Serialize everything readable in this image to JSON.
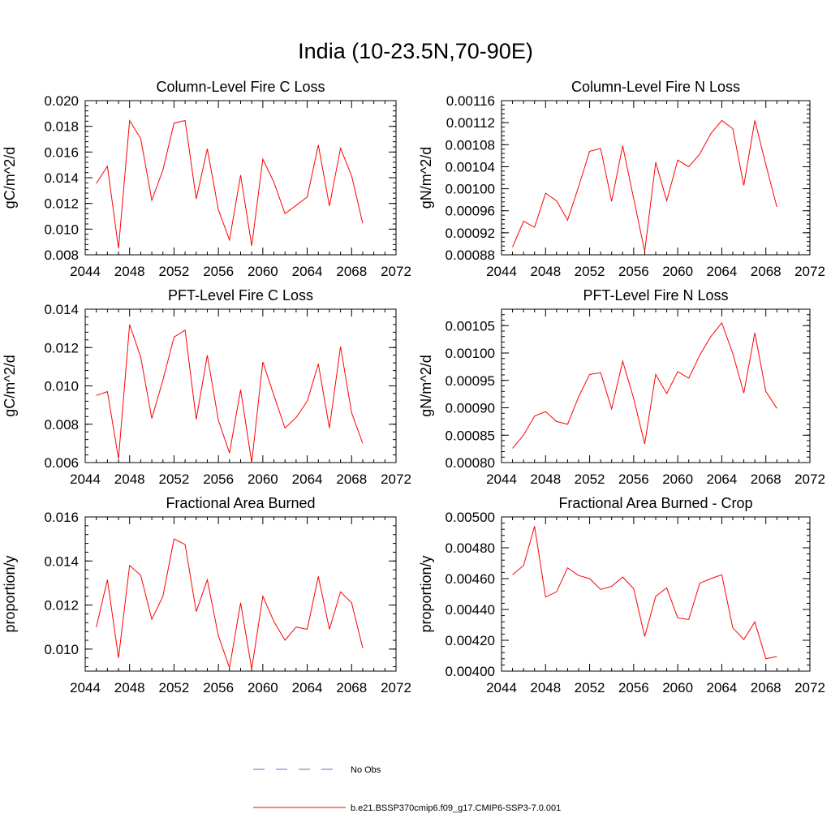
{
  "page": {
    "title": "India (10-23.5N,70-90E)"
  },
  "colors": {
    "series": "#ff0000",
    "obs": "#6b6bc8",
    "axis": "#000000"
  },
  "legend": {
    "entries": [
      {
        "label": "No Obs",
        "style": "dashed",
        "color": "#6b6bc8"
      },
      {
        "label": "b.e21.BSSP370cmip6.f09_g17.CMIP6-SSP3-7.0.001",
        "style": "solid",
        "color": "#ff0000"
      }
    ]
  },
  "chart_data": [
    {
      "type": "line",
      "title": "Column-Level Fire C Loss",
      "ylabel": "gC/m^2/d",
      "xlim": [
        2044,
        2072
      ],
      "xticks": [
        2044,
        2048,
        2052,
        2056,
        2060,
        2064,
        2068,
        2072
      ],
      "ylim": [
        0.008,
        0.02
      ],
      "yticks": [
        "0.008",
        "0.010",
        "0.012",
        "0.014",
        "0.016",
        "0.018",
        "0.020"
      ],
      "x": [
        2045,
        2046,
        2047,
        2048,
        2049,
        2050,
        2051,
        2052,
        2053,
        2054,
        2055,
        2056,
        2057,
        2058,
        2059,
        2060,
        2061,
        2062,
        2063,
        2064,
        2065,
        2066,
        2067,
        2068,
        2069
      ],
      "series": [
        {
          "name": "b.e21.BSSP370cmip6.f09_g17.CMIP6-SSP3-7.0.001",
          "values": [
            0.01355,
            0.0149,
            0.0085,
            0.01845,
            0.01705,
            0.01225,
            0.0146,
            0.01825,
            0.01845,
            0.01235,
            0.01625,
            0.0115,
            0.00915,
            0.0142,
            0.0087,
            0.01545,
            0.01365,
            0.0112,
            0.01185,
            0.0125,
            0.01655,
            0.0118,
            0.0163,
            0.01415,
            0.01045
          ]
        }
      ]
    },
    {
      "type": "line",
      "title": "Column-Level Fire N Loss",
      "ylabel": "gN/m^2/d",
      "xlim": [
        2044,
        2072
      ],
      "xticks": [
        2044,
        2048,
        2052,
        2056,
        2060,
        2064,
        2068,
        2072
      ],
      "ylim": [
        0.00088,
        0.00116
      ],
      "yticks": [
        "0.00088",
        "0.00092",
        "0.00096",
        "0.00100",
        "0.00104",
        "0.00108",
        "0.00112",
        "0.00116"
      ],
      "x": [
        2045,
        2046,
        2047,
        2048,
        2049,
        2050,
        2051,
        2052,
        2053,
        2054,
        2055,
        2056,
        2057,
        2058,
        2059,
        2060,
        2061,
        2062,
        2063,
        2064,
        2065,
        2066,
        2067,
        2068,
        2069
      ],
      "series": [
        {
          "name": "b.e21.BSSP370cmip6.f09_g17.CMIP6-SSP3-7.0.001",
          "values": [
            0.000894,
            0.000941,
            0.00093,
            0.000992,
            0.000978,
            0.000943,
            0.001004,
            0.001068,
            0.001073,
            0.000977,
            0.001078,
            0.000982,
            0.000886,
            0.001048,
            0.000978,
            0.001052,
            0.00104,
            0.001063,
            0.0011,
            0.001124,
            0.001109,
            0.001006,
            0.001124,
            0.001044,
            0.000967
          ]
        }
      ]
    },
    {
      "type": "line",
      "title": "PFT-Level Fire C Loss",
      "ylabel": "gC/m^2/d",
      "xlim": [
        2044,
        2072
      ],
      "xticks": [
        2044,
        2048,
        2052,
        2056,
        2060,
        2064,
        2068,
        2072
      ],
      "ylim": [
        0.006,
        0.014
      ],
      "yticks": [
        "0.006",
        "0.008",
        "0.010",
        "0.012",
        "0.014"
      ],
      "x": [
        2045,
        2046,
        2047,
        2048,
        2049,
        2050,
        2051,
        2052,
        2053,
        2054,
        2055,
        2056,
        2057,
        2058,
        2059,
        2060,
        2061,
        2062,
        2063,
        2064,
        2065,
        2066,
        2067,
        2068,
        2069
      ],
      "series": [
        {
          "name": "b.e21.BSSP370cmip6.f09_g17.CMIP6-SSP3-7.0.001",
          "values": [
            0.0095,
            0.0097,
            0.0062,
            0.0132,
            0.0115,
            0.0083,
            0.0103,
            0.01255,
            0.0129,
            0.00825,
            0.0116,
            0.0082,
            0.0065,
            0.0098,
            0.006,
            0.01125,
            0.0095,
            0.0078,
            0.00835,
            0.0092,
            0.01115,
            0.0078,
            0.01205,
            0.0086,
            0.007
          ]
        }
      ]
    },
    {
      "type": "line",
      "title": "PFT-Level Fire N Loss",
      "ylabel": "gN/m^2/d",
      "xlim": [
        2044,
        2072
      ],
      "xticks": [
        2044,
        2048,
        2052,
        2056,
        2060,
        2064,
        2068,
        2072
      ],
      "ylim": [
        0.0008,
        0.00108
      ],
      "yticks": [
        "0.00080",
        "0.00085",
        "0.00090",
        "0.00095",
        "0.00100",
        "0.00105"
      ],
      "x": [
        2045,
        2046,
        2047,
        2048,
        2049,
        2050,
        2051,
        2052,
        2053,
        2054,
        2055,
        2056,
        2057,
        2058,
        2059,
        2060,
        2061,
        2062,
        2063,
        2064,
        2065,
        2066,
        2067,
        2068,
        2069
      ],
      "series": [
        {
          "name": "b.e21.BSSP370cmip6.f09_g17.CMIP6-SSP3-7.0.001",
          "values": [
            0.000826,
            0.00085,
            0.000885,
            0.000893,
            0.000875,
            0.00087,
            0.00092,
            0.000961,
            0.000964,
            0.000898,
            0.000985,
            0.000917,
            0.000834,
            0.000961,
            0.000926,
            0.000966,
            0.000954,
            0.000996,
            0.00103,
            0.001055,
            0.000999,
            0.000927,
            0.001037,
            0.00093,
            0.000899
          ]
        }
      ]
    },
    {
      "type": "line",
      "title": "Fractional Area Burned",
      "ylabel": "proportion/y",
      "xlim": [
        2044,
        2072
      ],
      "xticks": [
        2044,
        2048,
        2052,
        2056,
        2060,
        2064,
        2068,
        2072
      ],
      "ylim": [
        0.009,
        0.016
      ],
      "yticks": [
        "0.010",
        "0.012",
        "0.014",
        "0.016"
      ],
      "x": [
        2045,
        2046,
        2047,
        2048,
        2049,
        2050,
        2051,
        2052,
        2053,
        2054,
        2055,
        2056,
        2057,
        2058,
        2059,
        2060,
        2061,
        2062,
        2063,
        2064,
        2065,
        2066,
        2067,
        2068,
        2069
      ],
      "series": [
        {
          "name": "b.e21.BSSP370cmip6.f09_g17.CMIP6-SSP3-7.0.001",
          "values": [
            0.011,
            0.01315,
            0.0096,
            0.0138,
            0.01335,
            0.01135,
            0.0124,
            0.015,
            0.01475,
            0.0117,
            0.01315,
            0.0106,
            0.00915,
            0.0121,
            0.0091,
            0.0124,
            0.01125,
            0.0104,
            0.011,
            0.0109,
            0.0133,
            0.0109,
            0.0126,
            0.0121,
            0.01005
          ]
        }
      ]
    },
    {
      "type": "line",
      "title": "Fractional Area Burned - Crop",
      "ylabel": "proportion/y",
      "xlim": [
        2044,
        2072
      ],
      "xticks": [
        2044,
        2048,
        2052,
        2056,
        2060,
        2064,
        2068,
        2072
      ],
      "ylim": [
        0.004,
        0.005
      ],
      "yticks": [
        "0.00400",
        "0.00420",
        "0.00440",
        "0.00460",
        "0.00480",
        "0.00500"
      ],
      "x": [
        2045,
        2046,
        2047,
        2048,
        2049,
        2050,
        2051,
        2052,
        2053,
        2054,
        2055,
        2056,
        2057,
        2058,
        2059,
        2060,
        2061,
        2062,
        2063,
        2064,
        2065,
        2066,
        2067,
        2068,
        2069
      ],
      "series": [
        {
          "name": "b.e21.BSSP370cmip6.f09_g17.CMIP6-SSP3-7.0.001",
          "values": [
            0.004625,
            0.004685,
            0.00494,
            0.00448,
            0.004515,
            0.00467,
            0.00462,
            0.0046,
            0.00453,
            0.00455,
            0.00461,
            0.004535,
            0.004225,
            0.004485,
            0.00454,
            0.004345,
            0.004335,
            0.00457,
            0.0046,
            0.004625,
            0.00428,
            0.004205,
            0.00432,
            0.00408,
            0.004095
          ]
        }
      ]
    }
  ]
}
